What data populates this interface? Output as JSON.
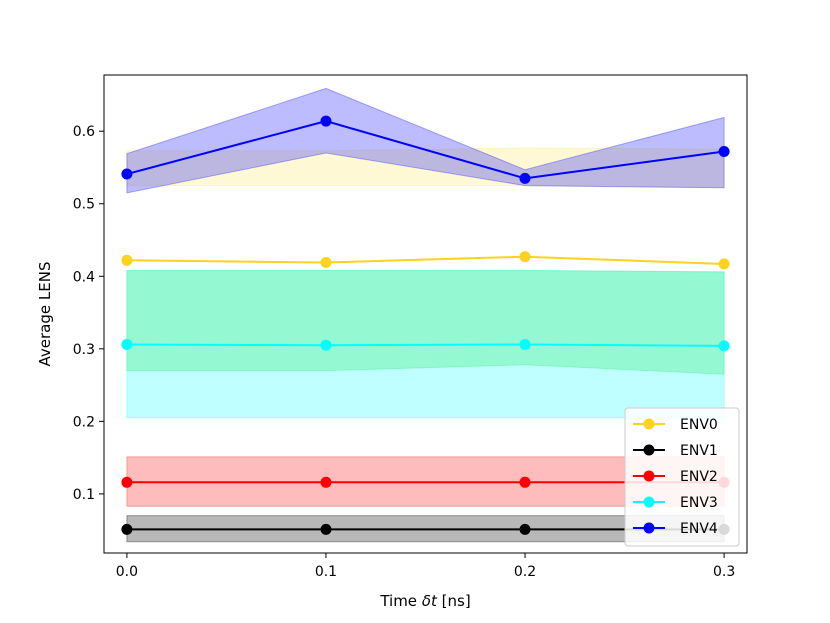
{
  "chart_data": {
    "type": "line",
    "title": "",
    "xlabel_prefix": "Time ",
    "xlabel_symbol": "δt",
    "xlabel_suffix": " [ns]",
    "ylabel": "Average LENS",
    "xlim": [
      -0.0115,
      0.3115
    ],
    "ylim": [
      0.0185,
      0.6775
    ],
    "x": [
      0.0,
      0.1,
      0.2,
      0.3
    ],
    "x_ticks": [
      0.0,
      0.1,
      0.2,
      0.3
    ],
    "x_tick_labels": [
      "0.0",
      "0.1",
      "0.2",
      "0.3"
    ],
    "y_ticks": [
      0.1,
      0.2,
      0.3,
      0.4,
      0.5,
      0.6
    ],
    "y_tick_labels": [
      "0.1",
      "0.2",
      "0.3",
      "0.4",
      "0.5",
      "0.6"
    ],
    "legend_position": "lower-right",
    "series": [
      {
        "name": "ENV0",
        "color": "#ffd21f",
        "band_color": "#ffe873",
        "values": [
          0.422,
          0.419,
          0.427,
          0.417
        ],
        "upper": [
          0.573,
          0.573,
          0.577,
          0.575
        ],
        "lower": [
          0.525,
          0.525,
          0.525,
          0.522
        ]
      },
      {
        "name": "ENV1",
        "color": "#000000",
        "band_color": "#000000",
        "values": [
          0.051,
          0.051,
          0.051,
          0.051
        ],
        "upper": [
          0.07,
          0.07,
          0.07,
          0.07
        ],
        "lower": [
          0.034,
          0.034,
          0.034,
          0.034
        ]
      },
      {
        "name": "ENV2",
        "color": "#ff0000",
        "band_color": "#ff2020",
        "values": [
          0.116,
          0.116,
          0.116,
          0.116
        ],
        "upper": [
          0.151,
          0.151,
          0.151,
          0.151
        ],
        "lower": [
          0.083,
          0.083,
          0.083,
          0.083
        ]
      },
      {
        "name": "ENV3",
        "color": "#00ffff",
        "band_color": "#30ffff",
        "values": [
          0.306,
          0.305,
          0.306,
          0.304
        ],
        "upper": [
          0.408,
          0.408,
          0.408,
          0.406
        ],
        "lower": [
          0.205,
          0.205,
          0.205,
          0.205
        ]
      },
      {
        "name": "ENV4",
        "color": "#0000ff",
        "band_color": "#2020ff",
        "values": [
          0.541,
          0.614,
          0.535,
          0.572
        ],
        "upper": [
          0.569,
          0.659,
          0.547,
          0.619
        ],
        "lower": [
          0.515,
          0.57,
          0.525,
          0.522
        ]
      }
    ],
    "green_band": {
      "upper": [
        0.408,
        0.408,
        0.408,
        0.406
      ],
      "lower": [
        0.27,
        0.27,
        0.278,
        0.265
      ]
    }
  }
}
